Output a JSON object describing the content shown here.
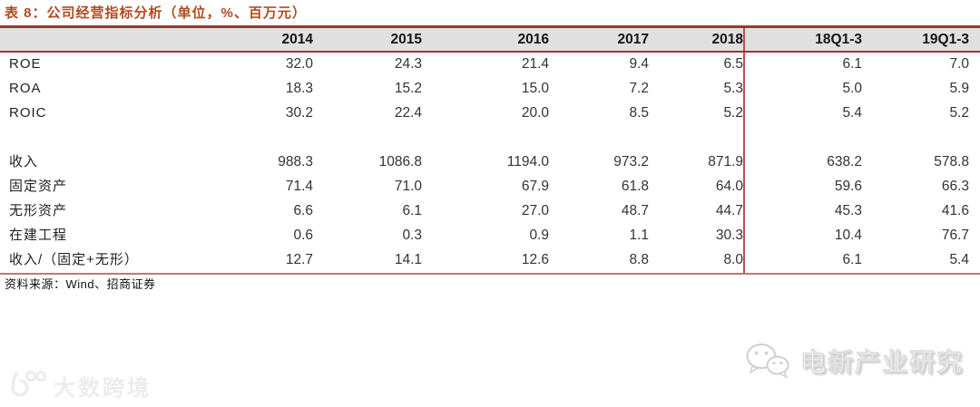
{
  "title": "表 8：公司经营指标分析（单位，%、百万元）",
  "table": {
    "columns": [
      "2014",
      "2015",
      "2016",
      "2017",
      "2018",
      "18Q1-3",
      "19Q1-3"
    ],
    "rows": [
      {
        "label": "ROE",
        "values": [
          "32.0",
          "24.3",
          "21.4",
          "9.4",
          "6.5",
          "6.1",
          "7.0"
        ]
      },
      {
        "label": "ROA",
        "values": [
          "18.3",
          "15.2",
          "15.0",
          "7.2",
          "5.3",
          "5.0",
          "5.9"
        ]
      },
      {
        "label": "ROIC",
        "values": [
          "30.2",
          "22.4",
          "20.0",
          "8.5",
          "5.2",
          "5.4",
          "5.2"
        ]
      },
      {
        "label": "",
        "values": [
          "",
          "",
          "",
          "",
          "",
          "",
          ""
        ]
      },
      {
        "label": "收入",
        "values": [
          "988.3",
          "1086.8",
          "1194.0",
          "973.2",
          "871.9",
          "638.2",
          "578.8"
        ]
      },
      {
        "label": "固定资产",
        "values": [
          "71.4",
          "71.0",
          "67.9",
          "61.8",
          "64.0",
          "59.6",
          "66.3"
        ]
      },
      {
        "label": "无形资产",
        "values": [
          "6.6",
          "6.1",
          "27.0",
          "48.7",
          "44.7",
          "45.3",
          "41.6"
        ]
      },
      {
        "label": "在建工程",
        "values": [
          "0.6",
          "0.3",
          "0.9",
          "1.1",
          "30.3",
          "10.4",
          "76.7"
        ]
      },
      {
        "label": "收入/（固定+无形）",
        "values": [
          "12.7",
          "14.1",
          "12.6",
          "8.8",
          "8.0",
          "6.1",
          "5.4"
        ]
      }
    ]
  },
  "source": "资料来源：Wind、招商证券",
  "watermarks": {
    "left_icon": "dashu-100-logo-icon",
    "left_text": "大数跨境",
    "right_icon": "wechat-icon",
    "right_text": "电新产业研究"
  },
  "colors": {
    "title_red": "#b34a22",
    "header_border_red": "#9a3732",
    "divider_red": "#c0504d",
    "bottom_line_pink": "#c1757d",
    "header_bg_gray": "#e0e0e0",
    "body_text": "#333333"
  }
}
